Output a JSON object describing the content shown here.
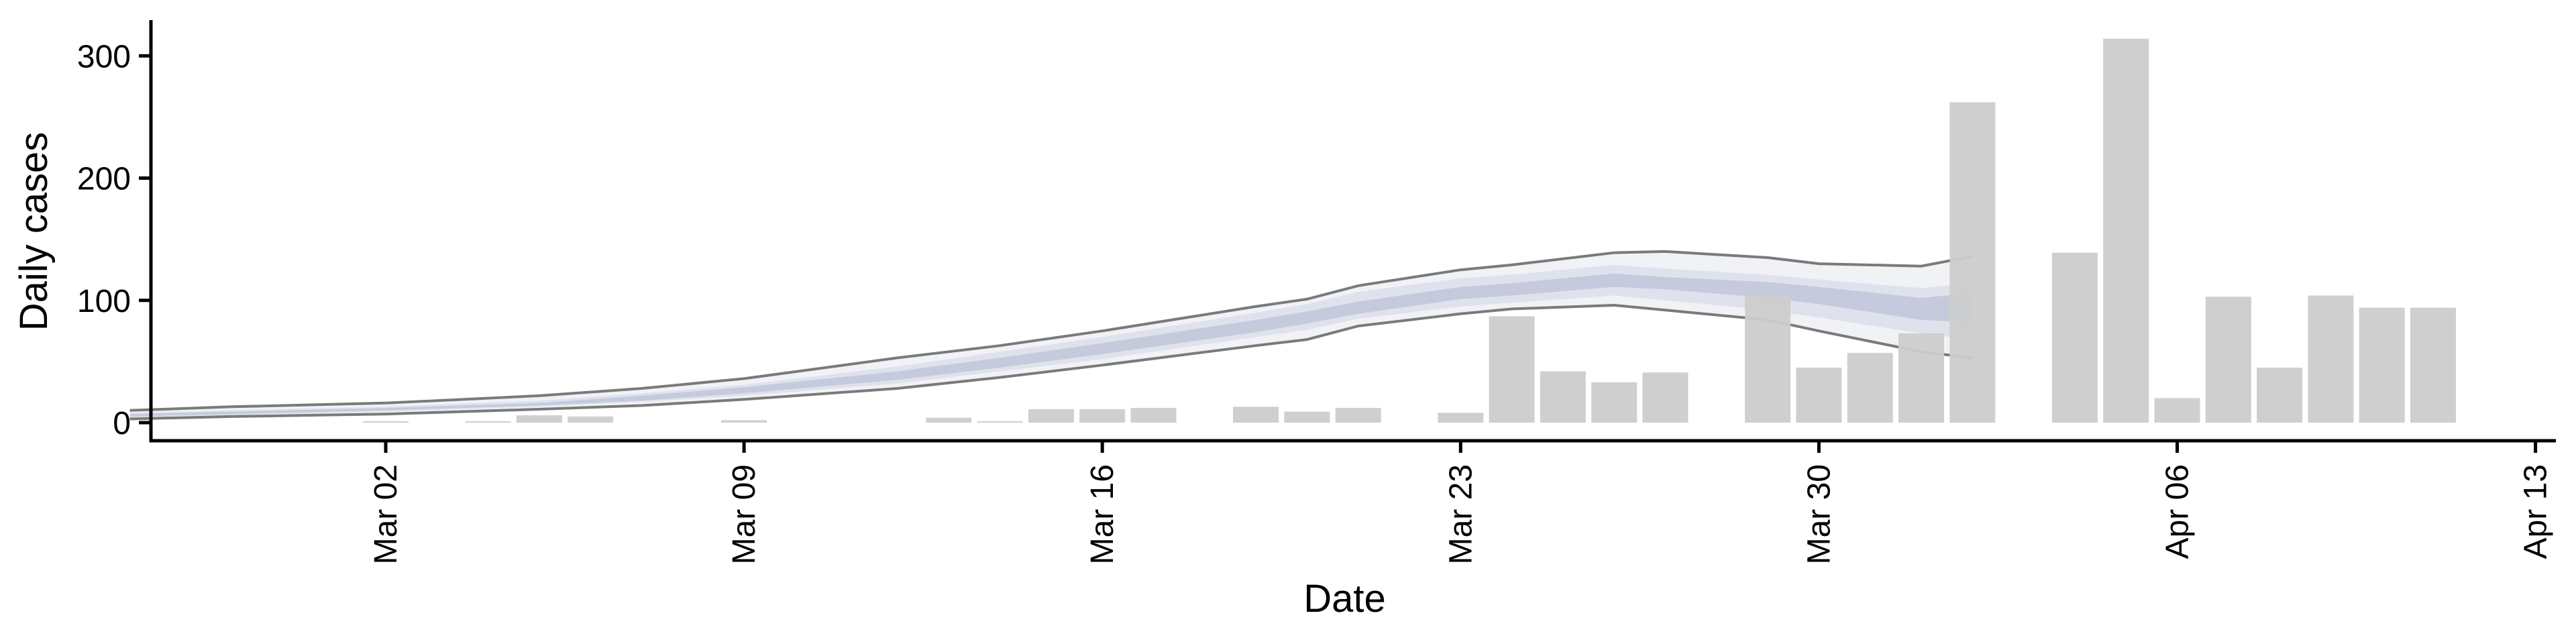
{
  "chart_data": {
    "type": "bar",
    "xlabel": "Date",
    "ylabel": "Daily cases",
    "x_ticks": [
      "Mar 02",
      "Mar 09",
      "Mar 16",
      "Mar 23",
      "Mar 30",
      "Apr 06",
      "Apr 13"
    ],
    "y_ticks": [
      "0",
      "100",
      "200",
      "300"
    ],
    "x_range": [
      "2020-02-26",
      "2020-04-13"
    ],
    "ylim": [
      -14,
      330
    ],
    "grid": false,
    "legend": "none",
    "colors": {
      "bars": "#cccccc",
      "band_inner": "#c5cbdd",
      "band_mid": "#dfe2ec",
      "band_outer": "#f1f2f6",
      "band_edge": "#7a7a7a",
      "axis": "#000000"
    },
    "bars": [
      {
        "date": "2020-03-02",
        "value": 1
      },
      {
        "date": "2020-03-04",
        "value": 1
      },
      {
        "date": "2020-03-05",
        "value": 6
      },
      {
        "date": "2020-03-06",
        "value": 5
      },
      {
        "date": "2020-03-09",
        "value": 2
      },
      {
        "date": "2020-03-13",
        "value": 4
      },
      {
        "date": "2020-03-14",
        "value": 1
      },
      {
        "date": "2020-03-15",
        "value": 11
      },
      {
        "date": "2020-03-16",
        "value": 11
      },
      {
        "date": "2020-03-17",
        "value": 12
      },
      {
        "date": "2020-03-19",
        "value": 13
      },
      {
        "date": "2020-03-20",
        "value": 9
      },
      {
        "date": "2020-03-21",
        "value": 12
      },
      {
        "date": "2020-03-23",
        "value": 8
      },
      {
        "date": "2020-03-24",
        "value": 87
      },
      {
        "date": "2020-03-25",
        "value": 42
      },
      {
        "date": "2020-03-26",
        "value": 33
      },
      {
        "date": "2020-03-27",
        "value": 41
      },
      {
        "date": "2020-03-29",
        "value": 104
      },
      {
        "date": "2020-03-30",
        "value": 45
      },
      {
        "date": "2020-03-31",
        "value": 57
      },
      {
        "date": "2020-04-01",
        "value": 73
      },
      {
        "date": "2020-04-02",
        "value": 262
      },
      {
        "date": "2020-04-04",
        "value": 139
      },
      {
        "date": "2020-04-05",
        "value": 314
      },
      {
        "date": "2020-04-06",
        "value": 20
      },
      {
        "date": "2020-04-07",
        "value": 103
      },
      {
        "date": "2020-04-08",
        "value": 45
      },
      {
        "date": "2020-04-09",
        "value": 104
      },
      {
        "date": "2020-04-10",
        "value": 94
      },
      {
        "date": "2020-04-11",
        "value": 94
      }
    ],
    "ribbon": {
      "dates": [
        "2020-02-26",
        "2020-02-28",
        "2020-03-02",
        "2020-03-05",
        "2020-03-07",
        "2020-03-09",
        "2020-03-12",
        "2020-03-14",
        "2020-03-16",
        "2020-03-19",
        "2020-03-20",
        "2020-03-21",
        "2020-03-23",
        "2020-03-24",
        "2020-03-26",
        "2020-03-27",
        "2020-03-29",
        "2020-03-30",
        "2020-04-01",
        "2020-04-02"
      ],
      "median": [
        6,
        8,
        11,
        15,
        20,
        26,
        38,
        49,
        60,
        78,
        85,
        93,
        105,
        108,
        116,
        113,
        108,
        104,
        93,
        92
      ],
      "inner": {
        "lower": [
          5,
          7,
          10,
          14,
          18,
          24,
          35,
          45,
          56,
          74,
          81,
          89,
          101,
          104,
          111,
          109,
          102,
          97,
          84,
          82
        ],
        "upper": [
          7,
          9,
          12,
          16,
          22,
          29,
          42,
          53,
          65,
          84,
          91,
          99,
          111,
          114,
          122,
          119,
          115,
          111,
          102,
          106
        ]
      },
      "mid": {
        "lower": [
          4,
          6,
          9,
          13,
          17,
          22,
          32,
          42,
          52,
          70,
          76,
          85,
          95,
          98,
          104,
          100,
          92,
          86,
          73,
          68
        ],
        "upper": [
          8,
          10,
          13,
          18,
          24,
          31,
          46,
          58,
          70,
          90,
          97,
          107,
          118,
          121,
          129,
          126,
          121,
          117,
          110,
          114
        ]
      },
      "outer": {
        "lower": [
          3,
          5,
          7,
          11,
          14,
          19,
          28,
          37,
          47,
          63,
          68,
          79,
          89,
          93,
          96,
          92,
          84,
          75,
          58,
          53
        ],
        "upper": [
          10,
          13,
          16,
          22,
          28,
          36,
          53,
          63,
          75,
          95,
          101,
          112,
          125,
          129,
          139,
          140,
          135,
          130,
          128,
          136
        ]
      }
    }
  }
}
